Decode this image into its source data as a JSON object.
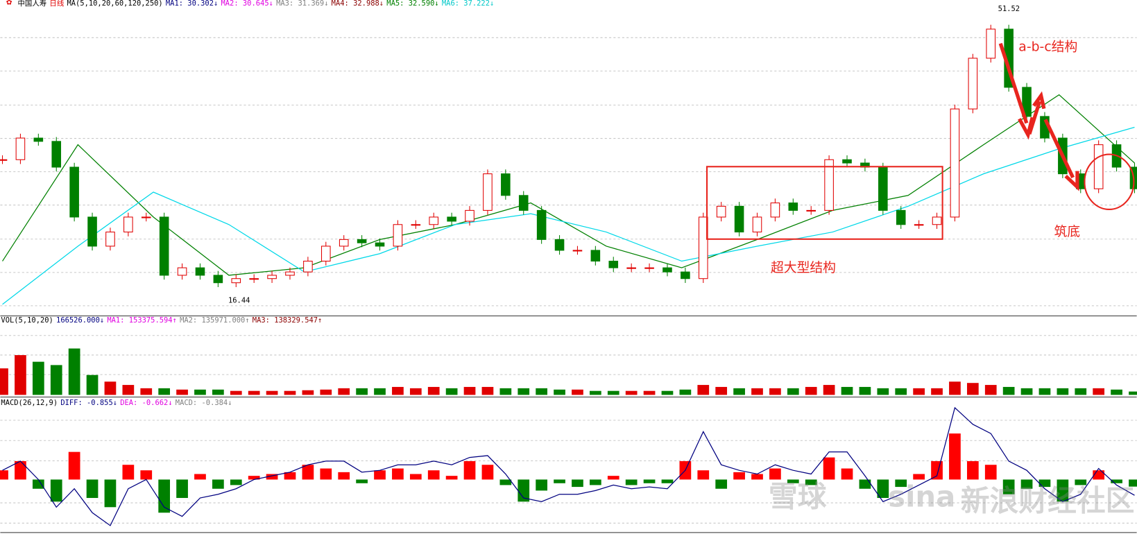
{
  "chart_data": [
    {
      "type": "candlestick",
      "header": [
        {
          "text": "中国人寿",
          "color": "#000000"
        },
        {
          "text": "日线",
          "color": "#e00000"
        },
        {
          "text": "MA(5,10,20,60,120,250)",
          "color": "#000000"
        },
        {
          "text": "MA1: 30.302↓",
          "color": "#000080"
        },
        {
          "text": "MA2: 30.645↓",
          "color": "#e000e0"
        },
        {
          "text": "MA3: 31.369↓",
          "color": "#808080"
        },
        {
          "text": "MA4: 32.988↓",
          "color": "#8b0000"
        },
        {
          "text": "MA5: 32.590↓",
          "color": "#008000"
        },
        {
          "text": "MA6: 37.222↓",
          "color": "#00c8c8"
        }
      ],
      "values": [
        33.4,
        36.0,
        35.6,
        32.5,
        26.5,
        23.0,
        24.7,
        26.5,
        26.5,
        19.5,
        20.4,
        19.5,
        18.6,
        19.1,
        19.1,
        19.5,
        19.9,
        21.2,
        23.0,
        23.8,
        23.4,
        23.0,
        25.6,
        25.6,
        26.5,
        26.0,
        27.3,
        31.7,
        29.1,
        27.3,
        23.8,
        22.5,
        22.5,
        21.2,
        20.4,
        20.4,
        20.4,
        19.9,
        19.1,
        26.5,
        27.8,
        24.7,
        26.5,
        28.2,
        27.3,
        27.3,
        33.4,
        33.0,
        32.5,
        27.3,
        25.6,
        25.6,
        26.5,
        39.5,
        45.6,
        49.1,
        42.1,
        38.6,
        36.0,
        31.7,
        29.9,
        35.2,
        32.5,
        29.9
      ],
      "up_color": "#e00000",
      "down_color": "#008000",
      "series": [
        {
          "color": "#008000",
          "values": [
            21.2,
            35.2,
            26.5,
            19.5,
            20.4,
            23.8,
            25.6,
            28.2,
            23.0,
            20.4,
            23.8,
            27.3,
            29.1,
            35.2,
            41.2,
            33.0
          ]
        },
        {
          "color": "#00d8e8",
          "values": [
            16.0,
            23.0,
            29.5,
            25.6,
            19.9,
            22.1,
            25.6,
            26.9,
            24.7,
            21.2,
            23.0,
            24.7,
            27.8,
            31.7,
            34.7,
            37.3
          ]
        }
      ],
      "high": 51.52,
      "low": 16.44,
      "ylim": [
        14.7,
        52.6
      ],
      "annotations": [
        "a-b-c结构",
        "筑底",
        "超大型结构"
      ]
    },
    {
      "type": "bar",
      "header": [
        {
          "text": "VOL(5,10,20)",
          "color": "#000000"
        },
        {
          "text": "166526.000↓",
          "color": "#000080"
        },
        {
          "text": "MA1: 153375.594↑",
          "color": "#e000e0"
        },
        {
          "text": "MA2: 135971.000↑",
          "color": "#808080"
        },
        {
          "text": "MA3: 138329.547↑",
          "color": "#8b0000"
        }
      ],
      "values": [
        1320000,
        1980000,
        1650000,
        1485000,
        2310000,
        990000,
        660000,
        495000,
        330000,
        330000,
        264000,
        264000,
        264000,
        198000,
        198000,
        198000,
        198000,
        231000,
        264000,
        330000,
        330000,
        330000,
        396000,
        330000,
        396000,
        330000,
        396000,
        396000,
        330000,
        330000,
        330000,
        264000,
        264000,
        198000,
        198000,
        198000,
        198000,
        198000,
        264000,
        495000,
        396000,
        330000,
        330000,
        330000,
        330000,
        396000,
        495000,
        396000,
        396000,
        330000,
        330000,
        330000,
        330000,
        660000,
        594000,
        495000,
        396000,
        330000,
        330000,
        330000,
        330000,
        330000,
        264000,
        166526
      ],
      "ylim": [
        0,
        3500000
      ]
    },
    {
      "type": "macd",
      "header": [
        {
          "text": "MACD(26,12,9)",
          "color": "#000000"
        },
        {
          "text": "DIFF: -0.855↓",
          "color": "#000080"
        },
        {
          "text": "DEA: -0.662↓",
          "color": "#e000e0"
        },
        {
          "text": "MACD: -0.384↓",
          "color": "#808080"
        }
      ],
      "values": [
        0.5,
        1.0,
        -0.5,
        -1.2,
        1.5,
        -1.0,
        -1.5,
        0.8,
        0.5,
        -1.8,
        -1.0,
        0.3,
        -0.5,
        -0.3,
        0.2,
        0.3,
        0.4,
        0.8,
        0.6,
        0.4,
        -0.2,
        0.5,
        0.6,
        0.3,
        0.5,
        0.2,
        1.0,
        0.8,
        -0.3,
        -1.2,
        -0.6,
        -0.2,
        -0.4,
        -0.3,
        0.2,
        -0.3,
        -0.2,
        -0.2,
        1.0,
        0.5,
        -0.5,
        0.4,
        0.3,
        0.6,
        -0.2,
        -0.3,
        1.2,
        0.6,
        -0.5,
        -1.0,
        -0.4,
        0.3,
        1.0,
        2.5,
        1.0,
        0.8,
        -0.8,
        -0.5,
        -0.4,
        -1.2,
        -0.3,
        0.5,
        -0.2,
        -0.384
      ],
      "up_color": "#ff0000",
      "down_color": "#008000",
      "diff": {
        "color": "#000080",
        "values": [
          0.5,
          1.0,
          0,
          -1.5,
          -0.5,
          -1.8,
          -2.5,
          -0.5,
          0,
          -1.5,
          -2.0,
          -1.0,
          -0.8,
          -0.5,
          0,
          0.2,
          0.4,
          0.8,
          1.0,
          1.0,
          0.4,
          0.5,
          0.8,
          0.8,
          1.0,
          0.8,
          1.2,
          1.3,
          0.3,
          -1.0,
          -1.2,
          -0.8,
          -0.8,
          -0.6,
          -0.3,
          -0.5,
          -0.4,
          -0.5,
          0.5,
          2.6,
          0.8,
          0.5,
          0.3,
          0.8,
          0.5,
          0.3,
          1.5,
          1.5,
          0.2,
          -1.2,
          -0.8,
          -0.3,
          0.2,
          3.9,
          3.0,
          2.5,
          1.0,
          0.5,
          -0.5,
          -1.2,
          -0.8,
          0.6,
          -0.3,
          -0.855
        ]
      },
      "ylim": [
        -2.8,
        4.4
      ],
      "watermark": [
        "雪球",
        "sina",
        "新浪财经社区"
      ]
    }
  ]
}
